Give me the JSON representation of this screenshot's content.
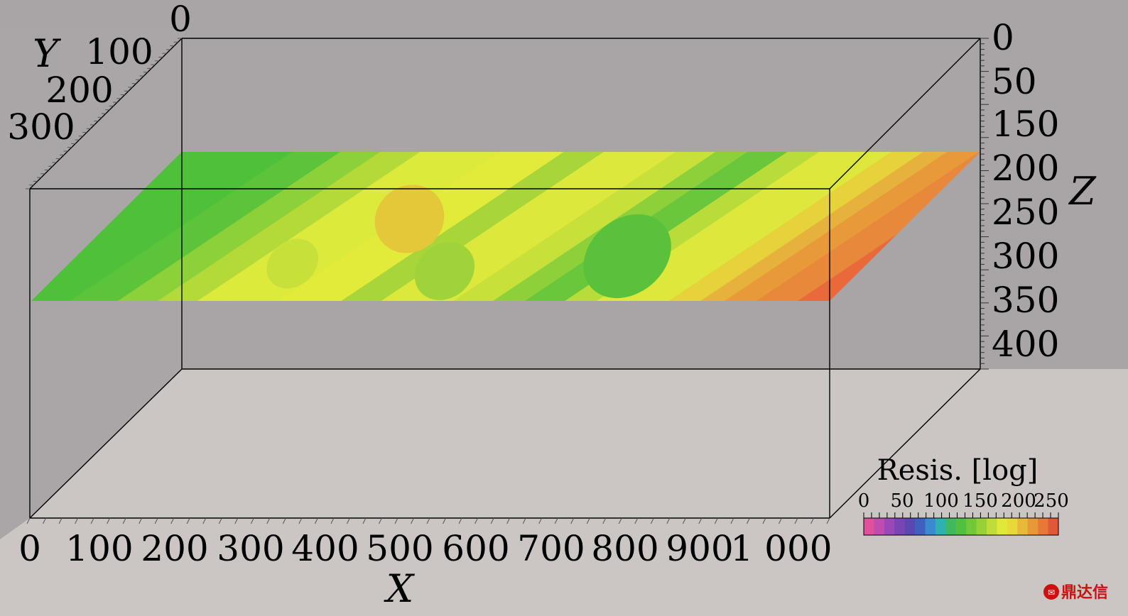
{
  "chart_data": {
    "type": "heatmap",
    "x_axis": {
      "label": "X",
      "ticks": [
        "0",
        "100",
        "200",
        "300",
        "400",
        "500",
        "600",
        "700",
        "800",
        "900",
        "1 000"
      ]
    },
    "y_axis": {
      "label": "Y",
      "ticks": [
        "0",
        "100",
        "200",
        "300"
      ]
    },
    "z_axis": {
      "label": "Z",
      "ticks": [
        "0",
        "50",
        "150",
        "200",
        "250",
        "300",
        "350",
        "400"
      ]
    },
    "colorbar": {
      "title": "Resis. [log]",
      "ticks": [
        "0",
        "50",
        "100",
        "150",
        "200",
        "250"
      ],
      "colors": [
        "#e0509c",
        "#c04cb0",
        "#9a48b8",
        "#7a44b4",
        "#5a48b0",
        "#4060c0",
        "#3a8ad0",
        "#30b0b0",
        "#40b860",
        "#50c040",
        "#70c838",
        "#98d038",
        "#c0dc38",
        "#e0e838",
        "#e8d838",
        "#e8b838",
        "#e89838",
        "#e87838",
        "#e05838"
      ]
    },
    "slice_bands": [
      {
        "u": 0.0,
        "v": 0.55,
        "color": "#4ec03a"
      },
      {
        "u": 0.09,
        "v": 0.55,
        "color": "#5cc43a"
      },
      {
        "u": 0.15,
        "v": 0.55,
        "color": "#8cd03a"
      },
      {
        "u": 0.2,
        "v": 0.55,
        "color": "#b4da3a"
      },
      {
        "u": 0.25,
        "v": 0.55,
        "color": "#dcea3c"
      },
      {
        "u": 0.35,
        "v": 0.55,
        "color": "#e2ea3a"
      },
      {
        "u": 0.43,
        "v": 0.55,
        "color": "#a8d63a"
      },
      {
        "u": 0.48,
        "v": 0.55,
        "color": "#dde83c"
      },
      {
        "u": 0.57,
        "v": 0.55,
        "color": "#c8e03a"
      },
      {
        "u": 0.62,
        "v": 0.55,
        "color": "#8ed03a"
      },
      {
        "u": 0.66,
        "v": 0.55,
        "color": "#6ac63a"
      },
      {
        "u": 0.71,
        "v": 0.55,
        "color": "#b8dc3a"
      },
      {
        "u": 0.75,
        "v": 0.55,
        "color": "#dee83c"
      },
      {
        "u": 0.84,
        "v": 0.55,
        "color": "#e6d23a"
      },
      {
        "u": 0.88,
        "v": 0.55,
        "color": "#e6b23c"
      },
      {
        "u": 0.91,
        "v": 0.55,
        "color": "#e89a3a"
      },
      {
        "u": 0.95,
        "v": 0.55,
        "color": "#e8883a"
      },
      {
        "u": 1.0,
        "v": 0.55,
        "color": "#e86a3a"
      }
    ],
    "slice_patches": [
      {
        "u": 0.37,
        "v": 0.45,
        "ru": 0.045,
        "rv": 0.22,
        "color": "#e4c83a"
      },
      {
        "u": 0.69,
        "v": 0.7,
        "ru": 0.06,
        "rv": 0.25,
        "color": "#5ac23a"
      },
      {
        "u": 0.48,
        "v": 0.8,
        "ru": 0.04,
        "rv": 0.18,
        "color": "#9ed43a"
      },
      {
        "u": 0.28,
        "v": 0.75,
        "ru": 0.035,
        "rv": 0.15,
        "color": "#c8e03a"
      }
    ]
  },
  "watermark": {
    "text": "鼎达信"
  }
}
